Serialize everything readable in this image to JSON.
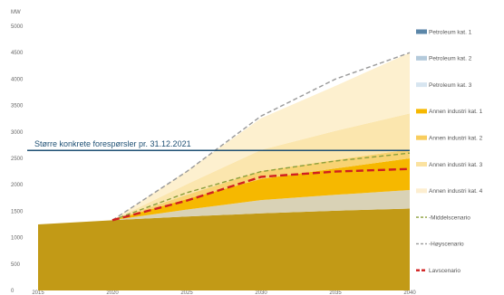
{
  "chart_data": {
    "type": "area",
    "ylabel": "MW",
    "ylim": [
      0,
      5000
    ],
    "xlim": [
      2015,
      2040
    ],
    "y_ticks": [
      0,
      500,
      1000,
      1500,
      2000,
      2500,
      3000,
      3500,
      4000,
      4500,
      5000
    ],
    "x_ticks": [
      2015,
      2020,
      2025,
      2030,
      2035,
      2040
    ],
    "x": [
      2015,
      2020,
      2025,
      2030,
      2035,
      2040
    ],
    "stacked_series": [
      {
        "name": "Petroleum kat. 1",
        "color": "#c29a16",
        "values": [
          1250,
          1330,
          1400,
          1460,
          1510,
          1550
        ]
      },
      {
        "name": "Petroleum kat. 2",
        "color": "#d9d2b6",
        "values": [
          0,
          0,
          130,
          250,
          300,
          350
        ]
      },
      {
        "name": "Petroleum kat. 3",
        "color": "#cfe0ee",
        "values": [
          0,
          0,
          0,
          0,
          0,
          0
        ]
      },
      {
        "name": "Annen industri kat. 1",
        "color": "#f6b800",
        "values": [
          0,
          0,
          200,
          400,
          500,
          600
        ]
      },
      {
        "name": "Annen industri kat. 2",
        "color": "#f8d372",
        "values": [
          0,
          0,
          80,
          150,
          160,
          170
        ]
      },
      {
        "name": "Annen industri kat. 3",
        "color": "#fbe6ae",
        "values": [
          0,
          0,
          200,
          400,
          550,
          680
        ]
      },
      {
        "name": "Annen industri kat. 4",
        "color": "#fdf0cf",
        "values": [
          0,
          0,
          250,
          600,
          850,
          1150
        ]
      }
    ],
    "line_series": [
      {
        "name": "-Middelscenario",
        "color": "#8c9f3c",
        "dash": "5,3",
        "values": [
          null,
          1330,
          1850,
          2250,
          2450,
          2600
        ]
      },
      {
        "name": "-Høyscenario",
        "color": "#999999",
        "dash": "5,3",
        "values": [
          null,
          1330,
          2250,
          3300,
          4000,
          4500
        ]
      },
      {
        "name": "Lavscenario",
        "color": "#d01f1f",
        "dash": "8,4",
        "values": [
          null,
          1330,
          1700,
          2150,
          2250,
          2300
        ]
      }
    ],
    "reference_line": {
      "label": "Større konkrete forespørsler pr. 31.12.2021",
      "value": 2650,
      "color": "#1d4f73"
    },
    "legend": {
      "placement": "right",
      "items": [
        {
          "label": "Petroleum kat. 1",
          "color": "#5b86a8",
          "type": "bar"
        },
        {
          "label": "Petroleum kat. 2",
          "color": "#b4cadb",
          "type": "bar"
        },
        {
          "label": "Petroleum kat. 3",
          "color": "#d7e5f0",
          "type": "bar"
        },
        {
          "label": "Annen industri kat. 1",
          "color": "#f6b800",
          "type": "bar"
        },
        {
          "label": "Annen industri kat. 2",
          "color": "#f8cd5e",
          "type": "bar"
        },
        {
          "label": "Annen industri kat. 3",
          "color": "#fbe2a0",
          "type": "bar"
        },
        {
          "label": "Annen industri kat. 4",
          "color": "#fdeed0",
          "type": "bar"
        },
        {
          "label": "-Middelscenario",
          "color": "#8c9f3c",
          "type": "dash"
        },
        {
          "label": "-Høyscenario",
          "color": "#999999",
          "type": "dash"
        },
        {
          "label": "Lavscenario",
          "color": "#d01f1f",
          "type": "dash"
        }
      ]
    }
  }
}
